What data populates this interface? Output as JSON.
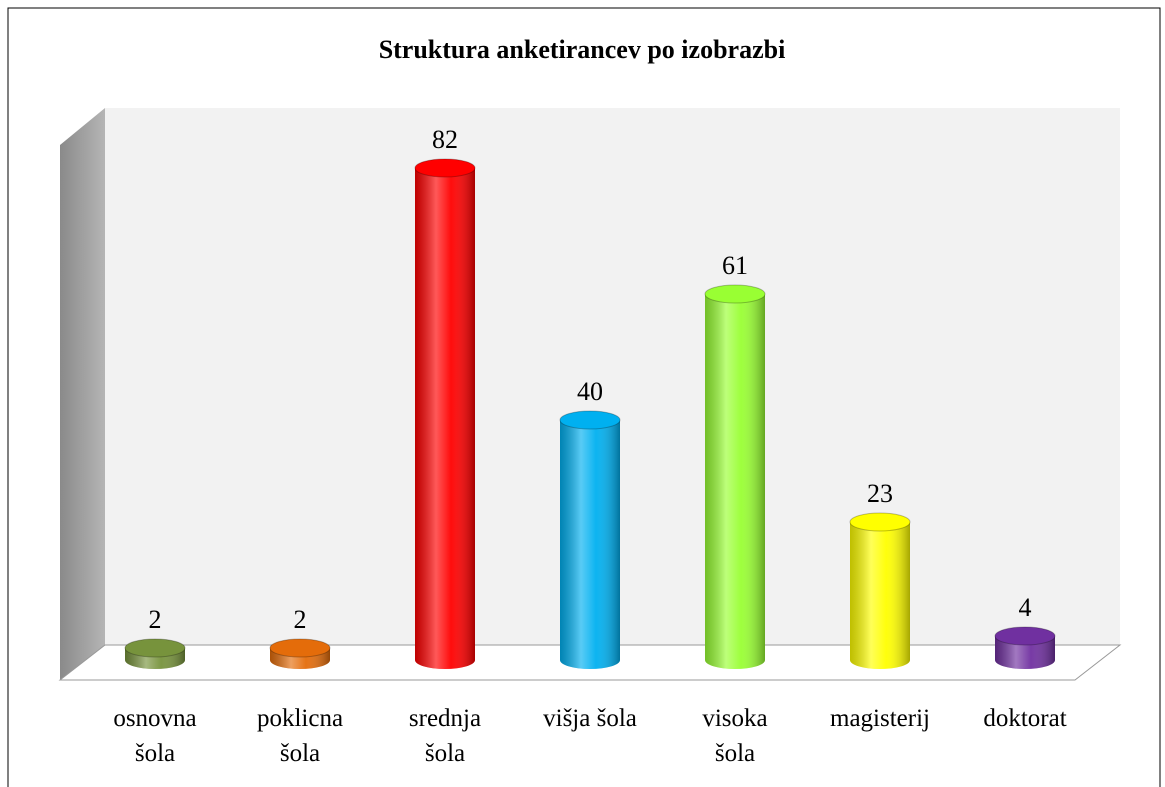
{
  "chart_data": {
    "type": "bar",
    "title": "Struktura anketirancev po izobrazbi",
    "categories": [
      "osnovna\nšola",
      "poklicna\nšola",
      "srednja\nšola",
      "višja šola",
      "visoka\nšola",
      "magisterij",
      "doktorat"
    ],
    "values": [
      2,
      2,
      82,
      40,
      61,
      23,
      4
    ],
    "colors": [
      "#77933c",
      "#e46c0a",
      "#ff0000",
      "#00b0f0",
      "#99ff33",
      "#ffff00",
      "#7030a0"
    ]
  }
}
